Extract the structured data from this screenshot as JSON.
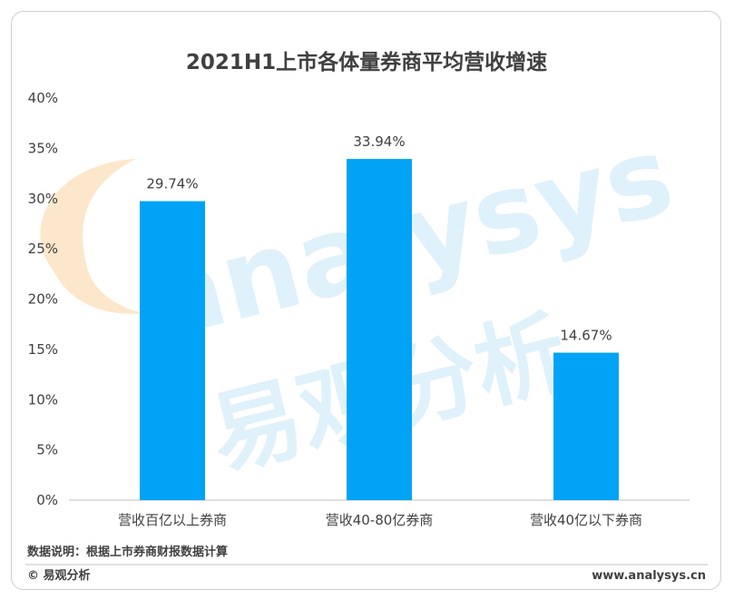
{
  "chart_data": {
    "type": "bar",
    "title": "2021H1上市各体量券商平均营收增速",
    "categories": [
      "营收百亿以上券商",
      "营收40-80亿券商",
      "营收40亿以下券商"
    ],
    "values": [
      29.74,
      33.94,
      14.67
    ],
    "data_labels": [
      "29.74%",
      "33.94%",
      "14.67%"
    ],
    "ylim": [
      0,
      40
    ],
    "yticks": [
      "0%",
      "5%",
      "10%",
      "15%",
      "20%",
      "25%",
      "30%",
      "35%",
      "40%"
    ],
    "ytick_values": [
      0,
      5,
      10,
      15,
      20,
      25,
      30,
      35,
      40
    ],
    "xlabel": "",
    "ylabel": "",
    "grid": false,
    "bar_color": "#00a3f5"
  },
  "footer": {
    "note": "数据说明：根据上市券商财报数据计算",
    "copyright": "© 易观分析",
    "url": "www.analysys.cn"
  },
  "watermark": {
    "latin": "analysys",
    "cjk": "易观分析",
    "color": "#dff1fb",
    "accent": "#fde3c2"
  }
}
